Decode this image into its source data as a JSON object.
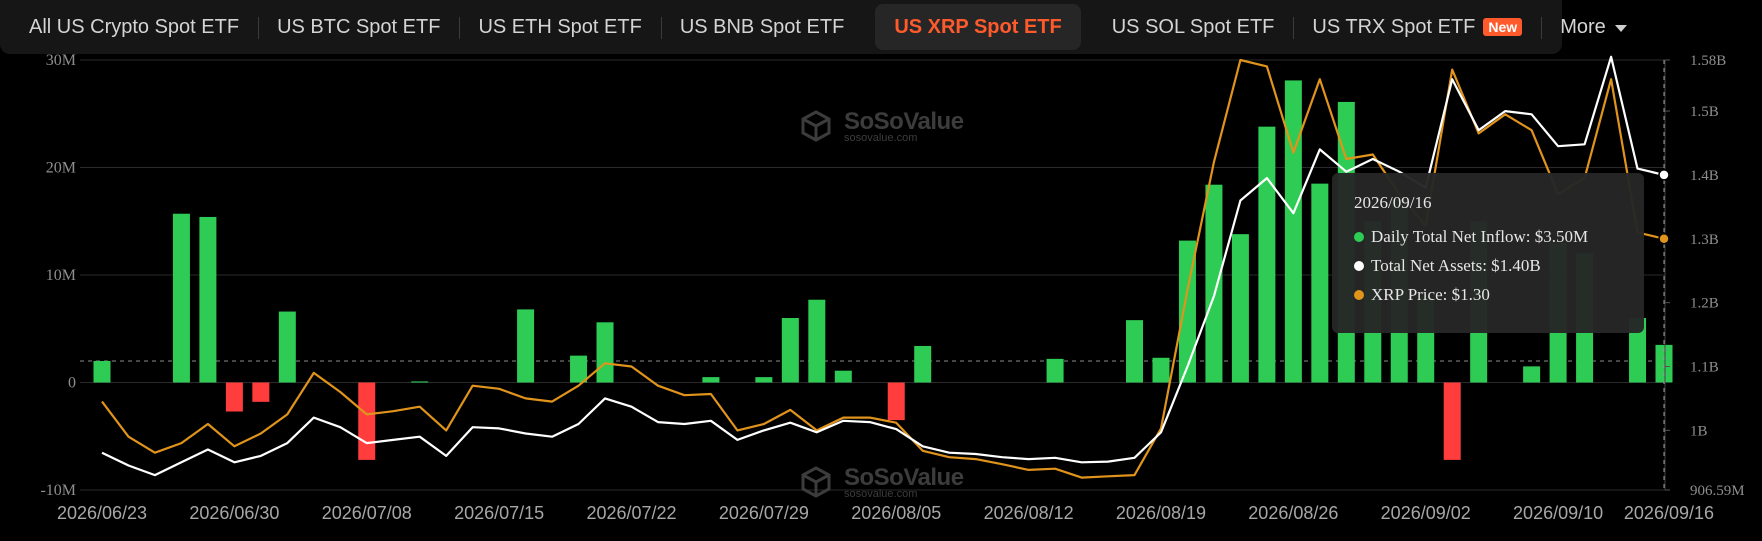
{
  "tabs": [
    {
      "label": "All US Crypto Spot ETF",
      "active": false
    },
    {
      "label": "US BTC Spot ETF",
      "active": false
    },
    {
      "label": "US ETH Spot ETF",
      "active": false
    },
    {
      "label": "US BNB Spot ETF",
      "active": false
    },
    {
      "label": "US XRP Spot ETF",
      "active": true
    },
    {
      "label": "US SOL Spot ETF",
      "active": false
    },
    {
      "label": "US TRX Spot ETF",
      "active": false,
      "badge": "New"
    }
  ],
  "more_label": "More",
  "watermark": {
    "name": "SoSoValue",
    "url": "sosovalue.com"
  },
  "colors": {
    "inflow_positive": "#2ecc55",
    "inflow_negative": "#ff3d3d",
    "net_assets_line": "#ffffff",
    "price_line": "#e0941b",
    "accent": "#ff5a2c"
  },
  "tooltip": {
    "date": "2026/09/16",
    "rows": [
      {
        "label": "Daily Total Net Inflow: $3.50M",
        "color": "#2ecc55"
      },
      {
        "label": "Total Net Assets: $1.40B",
        "color": "#ffffff"
      },
      {
        "label": "XRP Price: $1.30",
        "color": "#e0941b"
      }
    ]
  },
  "chart_data": {
    "type": "bar+line",
    "x_tick_labels": [
      "2026/06/23",
      "2026/06/30",
      "2026/07/08",
      "2026/07/15",
      "2026/07/22",
      "2026/07/29",
      "2026/08/05",
      "2026/08/12",
      "2026/08/19",
      "2026/08/26",
      "2026/09/02",
      "2026/09/10",
      "2026/09/16"
    ],
    "left_axis": {
      "ticks": [
        "30M",
        "20M",
        "10M",
        "0",
        "-10M"
      ],
      "range": [
        -10,
        30
      ],
      "unit": "M"
    },
    "right_axis": {
      "ticks": [
        "1.58B",
        "1.5B",
        "1.4B",
        "1.3B",
        "1.2B",
        "1.1B",
        "1B",
        "906.59M"
      ],
      "range": [
        0.90659,
        1.58
      ],
      "unit": "B"
    },
    "reference_line": {
      "axis": "left",
      "value": 2.0
    },
    "grid": true,
    "n_points": 60,
    "series": [
      {
        "name": "Daily Total Net Inflow",
        "kind": "bar",
        "axis": "left",
        "values": [
          2,
          0,
          0,
          15.7,
          15.4,
          -2.7,
          -1.8,
          6.6,
          0,
          0,
          -7.2,
          0,
          0.1,
          0,
          0,
          0,
          6.8,
          0,
          2.5,
          5.6,
          0,
          0,
          0,
          0.5,
          0,
          0.5,
          6,
          7.7,
          1.1,
          0,
          -3.5,
          3.4,
          0,
          0,
          0,
          0,
          2.2,
          0,
          0,
          5.8,
          2.3,
          13.2,
          18.4,
          13.8,
          23.8,
          28.1,
          18.5,
          26.1,
          15,
          17,
          8,
          -7.2,
          15,
          0,
          1.5,
          13,
          12,
          0,
          6,
          3.5
        ]
      },
      {
        "name": "Total Net Assets",
        "kind": "line",
        "axis": "right",
        "values": [
          0.965,
          0.945,
          0.93,
          0.95,
          0.97,
          0.95,
          0.96,
          0.98,
          1.02,
          1.005,
          0.98,
          0.985,
          0.99,
          0.96,
          1.005,
          1.003,
          0.995,
          0.99,
          1.01,
          1.05,
          1.037,
          1.013,
          1.01,
          1.015,
          0.985,
          1.0,
          1.012,
          0.997,
          1.015,
          1.013,
          1.002,
          0.975,
          0.965,
          0.963,
          0.958,
          0.955,
          0.957,
          0.95,
          0.951,
          0.957,
          0.997,
          1.1,
          1.21,
          1.36,
          1.395,
          1.34,
          1.44,
          1.405,
          1.425,
          1.405,
          1.38,
          1.55,
          1.47,
          1.5,
          1.495,
          1.445,
          1.448,
          1.585,
          1.41,
          1.4
        ]
      },
      {
        "name": "XRP Price",
        "kind": "line",
        "axis": "right",
        "values": [
          1.045,
          0.99,
          0.965,
          0.98,
          1.01,
          0.975,
          0.995,
          1.025,
          1.09,
          1.06,
          1.025,
          1.03,
          1.037,
          1.0,
          1.07,
          1.065,
          1.05,
          1.045,
          1.07,
          1.105,
          1.1,
          1.07,
          1.055,
          1.057,
          1.0,
          1.01,
          1.032,
          1.0,
          1.02,
          1.02,
          1.012,
          0.968,
          0.958,
          0.955,
          0.947,
          0.938,
          0.94,
          0.926,
          0.928,
          0.93,
          1.003,
          1.22,
          1.42,
          1.58,
          1.57,
          1.435,
          1.55,
          1.425,
          1.432,
          1.37,
          1.32,
          1.565,
          1.465,
          1.495,
          1.47,
          1.37,
          1.395,
          1.55,
          1.31,
          1.3
        ]
      }
    ]
  }
}
